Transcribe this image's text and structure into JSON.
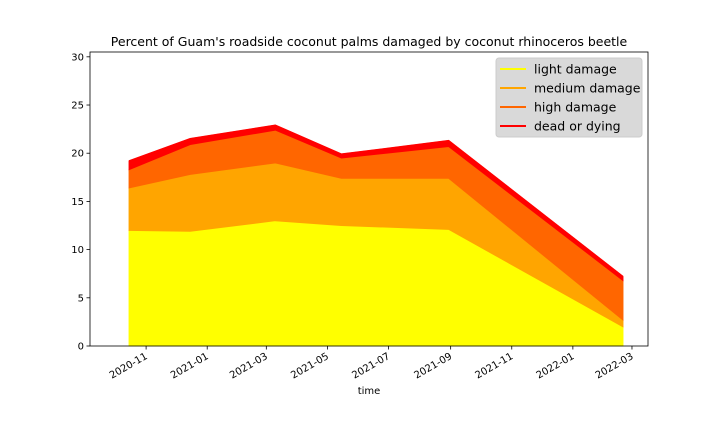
{
  "chart_data": {
    "type": "area",
    "stacked": true,
    "title": "Percent of Guam's roadside coconut palms damaged by coconut rhinoceros beetle",
    "xlabel": "time",
    "ylabel": "",
    "x_dates": [
      "2020-10-15",
      "2020-12-15",
      "2021-03-10",
      "2021-05-15",
      "2021-08-30",
      "2022-02-20"
    ],
    "series": [
      {
        "name": "light damage",
        "color": "#ffff00",
        "values": [
          12.0,
          11.9,
          13.0,
          12.5,
          12.1,
          2.0
        ]
      },
      {
        "name": "medium damage",
        "color": "#ffa500",
        "values": [
          4.4,
          5.9,
          6.0,
          4.9,
          5.3,
          0.7
        ]
      },
      {
        "name": "high damage",
        "color": "#ff6600",
        "values": [
          1.9,
          3.1,
          3.4,
          2.1,
          3.3,
          4.1
        ]
      },
      {
        "name": "dead or dying",
        "color": "#ff0000",
        "values": [
          0.9,
          0.6,
          0.5,
          0.4,
          0.6,
          0.4
        ]
      }
    ],
    "yticks": [
      0,
      5,
      10,
      15,
      20,
      25,
      30
    ],
    "ylim": [
      0,
      30.5
    ],
    "xticks": [
      "2020-11-01",
      "2021-01-01",
      "2021-03-01",
      "2021-05-01",
      "2021-07-01",
      "2021-09-01",
      "2021-11-01",
      "2022-01-01",
      "2022-03-01"
    ],
    "xtick_labels": [
      "2020-11",
      "2021-01",
      "2021-03",
      "2021-05",
      "2021-07",
      "2021-09",
      "2021-11",
      "2022-01",
      "2022-03"
    ],
    "xlim": [
      "2020-09-06",
      "2022-03-17"
    ],
    "legend_position": "top-right",
    "grid": false
  }
}
